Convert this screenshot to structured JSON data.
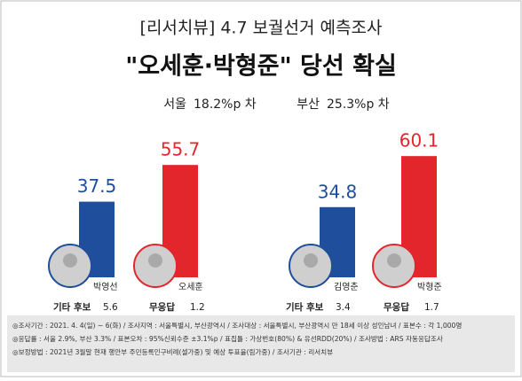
{
  "header": {
    "title": "[리서치뷰] 4.7 보궐선거 예측조사",
    "headline": "\"오세훈·박형준\" 당선 확실",
    "margins": [
      {
        "region": "서울",
        "gap": "18.2%p 차"
      },
      {
        "region": "부산",
        "gap": "25.3%p 차"
      }
    ]
  },
  "chart_data": [
    {
      "type": "bar",
      "categories": [
        "박영선",
        "오세훈"
      ],
      "values": [
        37.5,
        55.7
      ],
      "colors": [
        "#1f4e9c",
        "#e3262c"
      ],
      "ylim": [
        0,
        65
      ],
      "annotations": [
        {
          "label": "기타 후보",
          "value": 5.6
        },
        {
          "label": "무응답",
          "value": 1.2
        }
      ]
    },
    {
      "type": "bar",
      "categories": [
        "김영춘",
        "박형준"
      ],
      "values": [
        34.8,
        60.1
      ],
      "colors": [
        "#1f4e9c",
        "#e3262c"
      ],
      "ylim": [
        0,
        65
      ],
      "annotations": [
        {
          "label": "기타 후보",
          "value": 3.4
        },
        {
          "label": "무응답",
          "value": 1.7
        }
      ]
    }
  ],
  "notes": [
    "◎조사기간 : 2021. 4. 4(일) ~ 6(화) / 조사지역 : 서울특별시, 부산광역시 / 조사대상 : 서울특별시, 부산광역시 만 18세 이상 성인남녀 / 표본수 : 각 1,000명",
    "◎응답률 : 서울 2.9%, 부산 3.3% / 표본오차 : 95%신뢰수준 ±3.1%p / 표집틀 : 가상번호(80%) & 유선RDD(20%) / 조사방법 : ARS 자동응답조사",
    "◎보정방법 : 2021년 3월말 현재 행안부 주민등록인구비례(셀가중) 및 예상 투표율(림가중) / 조사기관 : 리서치뷰"
  ]
}
